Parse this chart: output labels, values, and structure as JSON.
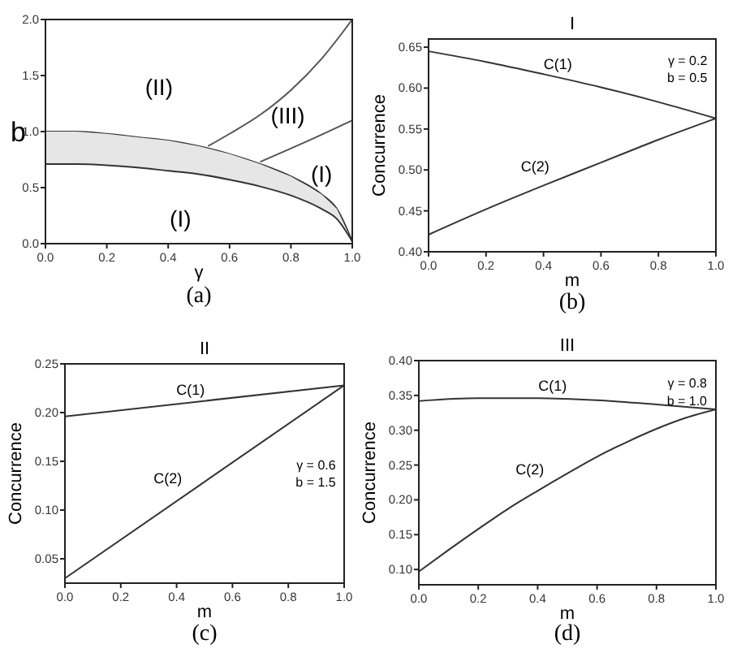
{
  "chart_data": [
    {
      "type": "line",
      "xlabel": "γ",
      "ylabel": "b",
      "xlim": [
        0,
        1
      ],
      "ylim": [
        0,
        2
      ],
      "xticks": [
        {
          "value": 0,
          "label": "0.0"
        },
        {
          "value": 0.2,
          "label": "0.2"
        },
        {
          "value": 0.4,
          "label": "0.4"
        },
        {
          "value": 0.6,
          "label": "0.6"
        },
        {
          "value": 0.8,
          "label": "0.8"
        },
        {
          "value": 1,
          "label": "1.0"
        }
      ],
      "yticks": [
        {
          "value": 0,
          "label": "0.0"
        },
        {
          "value": 0.5,
          "label": "0.5"
        },
        {
          "value": 1,
          "label": "1.0"
        },
        {
          "value": 1.5,
          "label": "1.5"
        },
        {
          "value": 2,
          "label": "2.0"
        }
      ],
      "series": [
        {
          "color": "#333333",
          "x": [
            0,
            0.1,
            0.2,
            0.3,
            0.4,
            0.5,
            0.6,
            0.7,
            0.8,
            0.9,
            0.95,
            1
          ],
          "values": [
            1,
            1,
            0.98,
            0.95,
            0.92,
            0.87,
            0.8,
            0.71,
            0.6,
            0.44,
            0.31,
            0.02
          ]
        },
        {
          "color": "#333333",
          "x": [
            0,
            0.1,
            0.2,
            0.3,
            0.4,
            0.5,
            0.6,
            0.7,
            0.8,
            0.9,
            0.95,
            1
          ],
          "values": [
            0.71,
            0.71,
            0.7,
            0.68,
            0.65,
            0.62,
            0.57,
            0.51,
            0.43,
            0.31,
            0.22,
            0.02
          ],
          "lower": [
            0.71,
            0.71,
            0.7,
            0.68,
            0.65,
            0.62,
            0.57,
            0.51,
            0.43,
            0.31,
            0.22,
            0.02
          ],
          "upper": [
            1,
            1,
            0.98,
            0.95,
            0.92,
            0.87,
            0.8,
            0.71,
            0.6,
            0.44,
            0.31,
            0.02
          ]
        },
        {
          "color": "#555555",
          "x": [
            0.53,
            0.6,
            0.7,
            0.8,
            0.9,
            1
          ],
          "values": [
            0.87,
            0.98,
            1.15,
            1.37,
            1.65,
            2.0
          ]
        },
        {
          "color": "#555555",
          "x": [
            0.7,
            0.85,
            1
          ],
          "values": [
            0.73,
            0.91,
            1.1
          ]
        }
      ],
      "annotations": [
        "(II)",
        "(III)",
        "(I)",
        "(I)",
        "(a)"
      ]
    },
    {
      "type": "line",
      "title": "I",
      "xlabel": "m",
      "ylabel": "Concurrence",
      "xlim": [
        0,
        1
      ],
      "ylim": [
        0.4,
        0.66
      ],
      "xticks": [
        {
          "value": 0,
          "label": "0.0"
        },
        {
          "value": 0.2,
          "label": "0.2"
        },
        {
          "value": 0.4,
          "label": "0.4"
        },
        {
          "value": 0.6,
          "label": "0.6"
        },
        {
          "value": 0.8,
          "label": "0.8"
        },
        {
          "value": 1,
          "label": "1.0"
        }
      ],
      "yticks": [
        {
          "value": 0.4,
          "label": "0.40"
        },
        {
          "value": 0.45,
          "label": "0.45"
        },
        {
          "value": 0.5,
          "label": "0.50"
        },
        {
          "value": 0.55,
          "label": "0.55"
        },
        {
          "value": 0.6,
          "label": "0.60"
        },
        {
          "value": 0.65,
          "label": "0.65"
        }
      ],
      "series": [
        {
          "name": "C(1)",
          "color": "#333333",
          "x": [
            0,
            0.2,
            0.4,
            0.6,
            0.8,
            1
          ],
          "values": [
            0.645,
            0.632,
            0.617,
            0.601,
            0.583,
            0.563
          ]
        },
        {
          "name": "C(2)",
          "color": "#333333",
          "x": [
            0,
            0.2,
            0.4,
            0.6,
            0.8,
            1
          ],
          "values": [
            0.421,
            0.452,
            0.481,
            0.509,
            0.537,
            0.563
          ]
        }
      ],
      "annotations": [
        "γ = 0.2",
        "b = 0.5",
        "(b)"
      ]
    },
    {
      "type": "line",
      "title": "II",
      "xlabel": "m",
      "ylabel": "Concurrence",
      "xlim": [
        0,
        1
      ],
      "ylim": [
        0.025,
        0.25
      ],
      "xticks": [
        {
          "value": 0,
          "label": "0.0"
        },
        {
          "value": 0.2,
          "label": "0.2"
        },
        {
          "value": 0.4,
          "label": "0.4"
        },
        {
          "value": 0.6,
          "label": "0.6"
        },
        {
          "value": 0.8,
          "label": "0.8"
        },
        {
          "value": 1,
          "label": "1.0"
        }
      ],
      "yticks": [
        {
          "value": 0.05,
          "label": "0.05"
        },
        {
          "value": 0.1,
          "label": "0.10"
        },
        {
          "value": 0.15,
          "label": "0.15"
        },
        {
          "value": 0.2,
          "label": "0.20"
        },
        {
          "value": 0.25,
          "label": "0.25"
        }
      ],
      "series": [
        {
          "name": "C(1)",
          "color": "#333333",
          "x": [
            0,
            1
          ],
          "values": [
            0.196,
            0.228
          ]
        },
        {
          "name": "C(2)",
          "color": "#333333",
          "x": [
            0,
            1
          ],
          "values": [
            0.03,
            0.228
          ]
        }
      ],
      "annotations": [
        "γ = 0.6",
        "b = 1.5",
        "(c)"
      ]
    },
    {
      "type": "line",
      "title": "III",
      "xlabel": "m",
      "ylabel": "Concurrence",
      "xlim": [
        0,
        1
      ],
      "ylim": [
        0.078,
        0.4
      ],
      "xticks": [
        {
          "value": 0,
          "label": "0.0"
        },
        {
          "value": 0.2,
          "label": "0.2"
        },
        {
          "value": 0.4,
          "label": "0.4"
        },
        {
          "value": 0.6,
          "label": "0.6"
        },
        {
          "value": 0.8,
          "label": "0.8"
        },
        {
          "value": 1,
          "label": "1.0"
        }
      ],
      "yticks": [
        {
          "value": 0.1,
          "label": "0.10"
        },
        {
          "value": 0.15,
          "label": "0.15"
        },
        {
          "value": 0.2,
          "label": "0.20"
        },
        {
          "value": 0.25,
          "label": "0.25"
        },
        {
          "value": 0.3,
          "label": "0.30"
        },
        {
          "value": 0.35,
          "label": "0.35"
        },
        {
          "value": 0.4,
          "label": "0.40"
        }
      ],
      "series": [
        {
          "name": "C(1)",
          "color": "#333333",
          "x": [
            0,
            0.2,
            0.4,
            0.6,
            0.8,
            1
          ],
          "values": [
            0.342,
            0.346,
            0.346,
            0.343,
            0.337,
            0.33
          ]
        },
        {
          "name": "C(2)",
          "color": "#333333",
          "x": [
            0,
            0.1,
            0.2,
            0.3,
            0.4,
            0.5,
            0.6,
            0.7,
            0.8,
            0.9,
            1
          ],
          "values": [
            0.097,
            0.128,
            0.158,
            0.187,
            0.213,
            0.238,
            0.262,
            0.283,
            0.302,
            0.318,
            0.33
          ]
        }
      ],
      "annotations": [
        "γ = 0.8",
        "b = 1.0",
        "(d)"
      ]
    }
  ]
}
